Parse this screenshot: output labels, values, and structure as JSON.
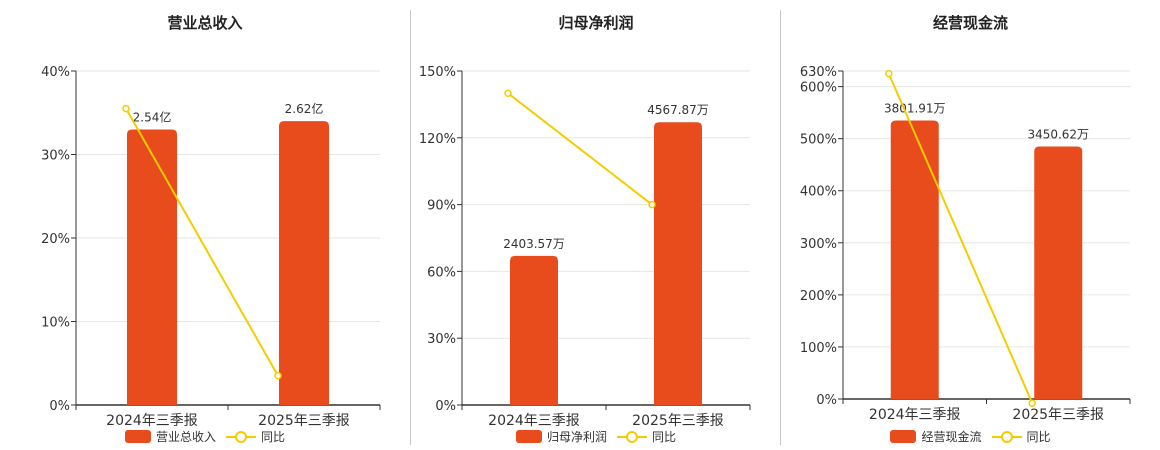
{
  "colors": {
    "bar": "#e84c1c",
    "line": "#f5cc00",
    "axis": "#333333",
    "grid": "#e6e6e6"
  },
  "chart_data": [
    {
      "type": "bar",
      "title": "营业总收入",
      "categories": [
        "2024年三季报",
        "2025年三季报"
      ],
      "bar_data_labels": [
        "2.54亿",
        "2.62亿"
      ],
      "bar_heights_on_axis": [
        33,
        34
      ],
      "line_values": [
        35.5,
        3.5
      ],
      "y_ticks": [
        "0%",
        "10%",
        "20%",
        "30%",
        "40%"
      ],
      "ylim": [
        0,
        40
      ],
      "legend": [
        "营业总收入",
        "同比"
      ]
    },
    {
      "type": "bar",
      "title": "归母净利润",
      "categories": [
        "2024年三季报",
        "2025年三季报"
      ],
      "bar_data_labels": [
        "2403.57万",
        "4567.87万"
      ],
      "bar_heights_on_axis": [
        67,
        127
      ],
      "line_values": [
        140,
        90
      ],
      "y_ticks": [
        "0%",
        "30%",
        "60%",
        "90%",
        "120%",
        "150%"
      ],
      "ylim": [
        0,
        150
      ],
      "legend": [
        "归母净利润",
        "同比"
      ]
    },
    {
      "type": "bar",
      "title": "经营现金流",
      "categories": [
        "2024年三季报",
        "2025年三季报"
      ],
      "bar_data_labels": [
        "3801.91万",
        "3450.62万"
      ],
      "bar_heights_on_axis": [
        535,
        485
      ],
      "line_values": [
        625,
        -8
      ],
      "y_ticks": [
        "0%",
        "100%",
        "200%",
        "300%",
        "400%",
        "500%",
        "600%",
        "630%"
      ],
      "ylim": [
        0,
        630
      ],
      "legend": [
        "经营现金流",
        "同比"
      ]
    }
  ]
}
